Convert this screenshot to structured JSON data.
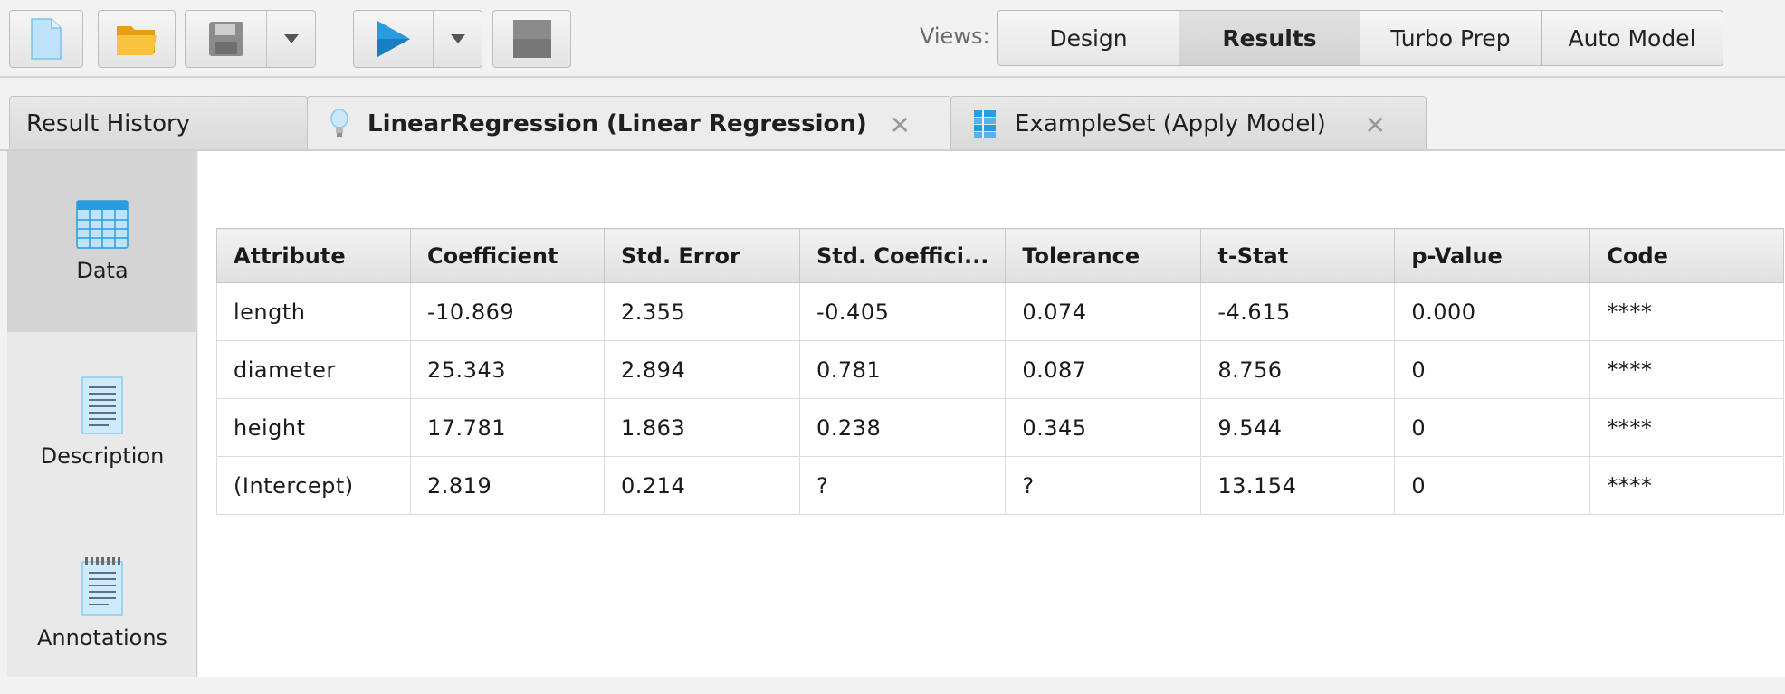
{
  "toolbar": {
    "views_label": "Views:",
    "views": [
      {
        "label": "Design",
        "active": false
      },
      {
        "label": "Results",
        "active": true
      },
      {
        "label": "Turbo Prep",
        "active": false
      },
      {
        "label": "Auto Model",
        "active": false
      }
    ],
    "icons": [
      "new-process-icon",
      "open-folder-icon",
      "save-icon",
      "run-play-icon",
      "stop-icon"
    ]
  },
  "tabs": [
    {
      "label": "Result History",
      "active": false
    },
    {
      "label": "LinearRegression (Linear Regression)",
      "active": true,
      "close": "✕"
    },
    {
      "label": "ExampleSet (Apply Model)",
      "active": false,
      "close": "✕"
    }
  ],
  "sidenav": {
    "items": [
      {
        "label": "Data",
        "active": true
      },
      {
        "label": "Description",
        "active": false
      },
      {
        "label": "Annotations",
        "active": false
      }
    ]
  },
  "table": {
    "columns": [
      "Attribute",
      "Coefficient",
      "Std. Error",
      "Std. Coeffici...",
      "Tolerance",
      "t-Stat",
      "p-Value",
      "Code"
    ],
    "rows": [
      [
        "length",
        "-10.869",
        "2.355",
        "-0.405",
        "0.074",
        "-4.615",
        "0.000",
        "****"
      ],
      [
        "diameter",
        "25.343",
        "2.894",
        "0.781",
        "0.087",
        "8.756",
        "0",
        "****"
      ],
      [
        "height",
        "17.781",
        "1.863",
        "0.238",
        "0.345",
        "9.544",
        "0",
        "****"
      ],
      [
        "(Intercept)",
        "2.819",
        "0.214",
        "?",
        "?",
        "13.154",
        "0",
        "****"
      ]
    ]
  },
  "colors": {
    "accent_blue": "#2b9be0",
    "folder_yellow": "#f2b21c",
    "active_view_bg": "#d6d6d6"
  }
}
